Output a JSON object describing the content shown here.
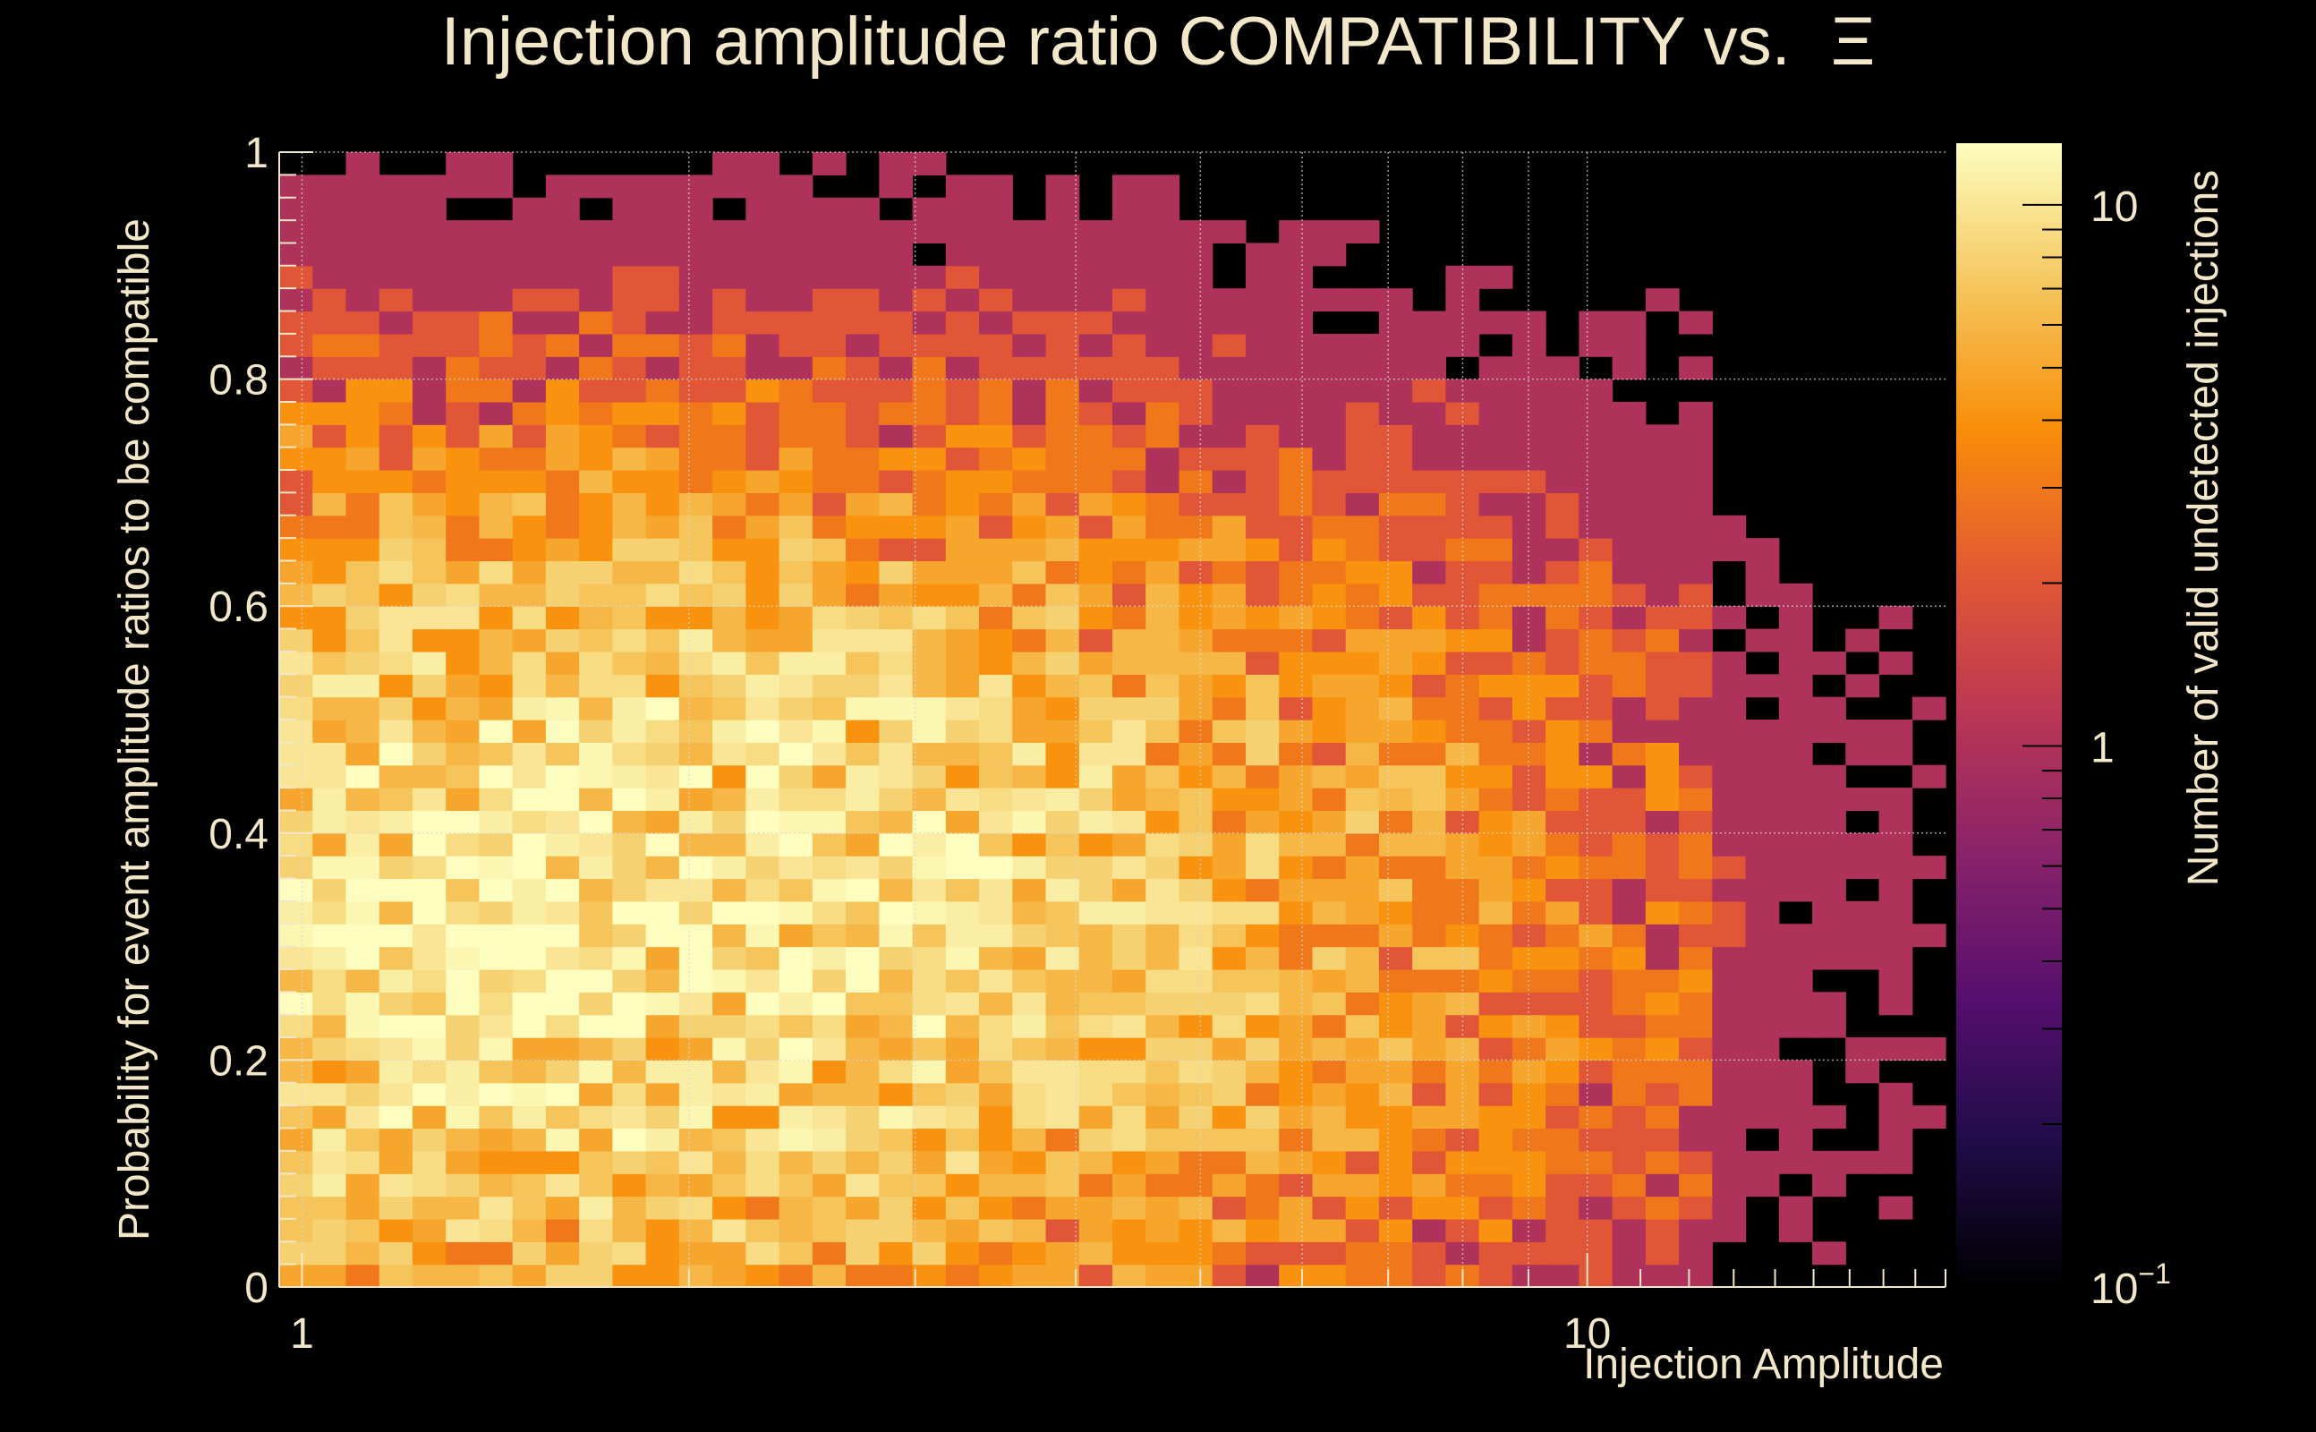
{
  "chart_data": {
    "type": "heatmap",
    "title": "Injection amplitude ratio COMPATIBILITY vs.",
    "title_symbol": "Ξ",
    "xlabel": "Injection Amplitude",
    "ylabel": "Probability for event amplitude ratios to be compatible",
    "zlabel": "Number of valid undetected injections",
    "x_scale": "log",
    "z_scale": "log",
    "xlim": [
      0.96,
      19.0
    ],
    "ylim": [
      0,
      1
    ],
    "zlim": [
      0.1,
      13
    ],
    "x_ticks": [
      {
        "value": 1,
        "label": "1"
      },
      {
        "value": 10,
        "label": "10"
      }
    ],
    "y_ticks": [
      {
        "value": 0,
        "label": "0"
      },
      {
        "value": 0.2,
        "label": "0.2"
      },
      {
        "value": 0.4,
        "label": "0.4"
      },
      {
        "value": 0.6,
        "label": "0.6"
      },
      {
        "value": 0.8,
        "label": "0.8"
      },
      {
        "value": 1,
        "label": "1"
      }
    ],
    "z_ticks": [
      {
        "value": 0.1,
        "label": "10",
        "exponent": "−1"
      },
      {
        "value": 1,
        "label": "1"
      },
      {
        "value": 10,
        "label": "10"
      }
    ],
    "grid": true,
    "colormap": [
      "#000000",
      "#1f0c48",
      "#550f6d",
      "#88226a",
      "#ba3655",
      "#e35933",
      "#f98e09",
      "#f5c65d",
      "#fcfdbf"
    ],
    "bins": {
      "nx": 50,
      "ny": 50,
      "x_edges": [
        0.96,
        19.0
      ],
      "y_edges": [
        0,
        1
      ],
      "peak": {
        "x_log10": 0.2,
        "y": 0.33,
        "value": 11
      },
      "counts_description": "counts per bin from 0 to about 11; densest for amplitude 1–4 and probability 0.1–0.5; sparse beyond amplitude 10"
    }
  }
}
